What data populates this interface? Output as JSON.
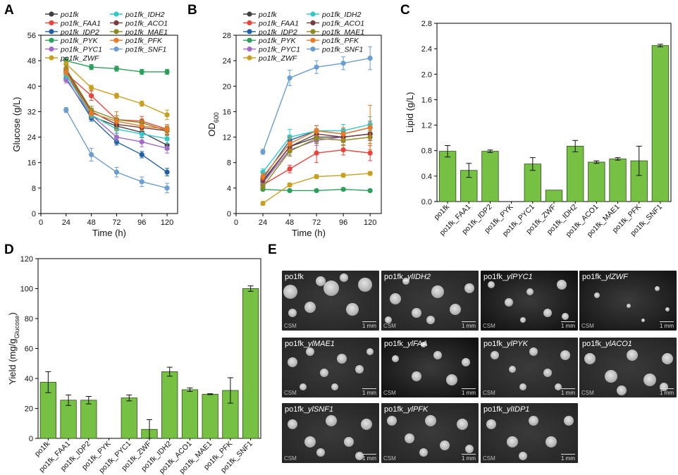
{
  "panels": {
    "A": "A",
    "B": "B",
    "C": "C",
    "D": "D",
    "E": "E"
  },
  "chart_data": [
    {
      "type": "line",
      "panel": "A",
      "xlabel": "Time (h)",
      "ylabel": "Glucose (g/L)",
      "xlim": [
        0,
        130
      ],
      "ylim": [
        0,
        56
      ],
      "xticks": [
        0,
        24,
        48,
        72,
        96,
        120
      ],
      "yticks": [
        0,
        8,
        16,
        24,
        32,
        40,
        48,
        56
      ],
      "x": [
        24,
        48,
        72,
        96,
        120
      ],
      "series": [
        {
          "name": "po1fk",
          "color": "#404040",
          "values": [
            44.5,
            30.5,
            27.5,
            25.5,
            21.5
          ],
          "err": [
            1.2,
            1.0,
            1.2,
            1.5,
            1.5
          ]
        },
        {
          "name": "po1fk_FAA1",
          "color": "#e8463c",
          "values": [
            44.0,
            37.0,
            29.5,
            29.0,
            26.5
          ],
          "err": [
            1.5,
            1.5,
            1.2,
            1.5,
            1.5
          ]
        },
        {
          "name": "po1fk_IDP2",
          "color": "#2060a8",
          "values": [
            42.5,
            30.0,
            22.5,
            18.5,
            13.0
          ],
          "err": [
            1.0,
            1.0,
            1.0,
            1.0,
            1.2
          ]
        },
        {
          "name": "po1fk_PYK",
          "color": "#2ca05a",
          "values": [
            48.0,
            46.0,
            45.5,
            44.5,
            44.5
          ],
          "err": [
            1.0,
            0.8,
            0.8,
            0.8,
            0.8
          ]
        },
        {
          "name": "po1fk_PYC1",
          "color": "#a06cc8",
          "values": [
            42.0,
            31.0,
            24.0,
            22.5,
            20.5
          ],
          "err": [
            1.0,
            1.0,
            1.2,
            1.5,
            1.5
          ]
        },
        {
          "name": "po1fk_ZWF",
          "color": "#c8a020",
          "values": [
            47.0,
            39.5,
            37.0,
            34.5,
            31.0
          ],
          "err": [
            1.0,
            0.8,
            0.8,
            0.8,
            1.5
          ]
        },
        {
          "name": "po1fk_IDH2",
          "color": "#30c8c8",
          "values": [
            43.5,
            31.0,
            26.5,
            25.0,
            23.5
          ],
          "err": [
            1.0,
            1.0,
            1.2,
            1.2,
            1.5
          ]
        },
        {
          "name": "po1fk_ACO1",
          "color": "#7a3a3a",
          "values": [
            45.0,
            32.0,
            28.0,
            27.0,
            26.0
          ],
          "err": [
            1.0,
            1.0,
            1.2,
            1.2,
            1.2
          ]
        },
        {
          "name": "po1fk_MAE1",
          "color": "#8a8a20",
          "values": [
            45.5,
            32.5,
            29.5,
            28.5,
            26.0
          ],
          "err": [
            1.0,
            1.2,
            1.2,
            1.2,
            1.5
          ]
        },
        {
          "name": "po1fk_PFK",
          "color": "#e87a28",
          "values": [
            44.5,
            31.5,
            29.0,
            27.5,
            26.5
          ],
          "err": [
            1.2,
            1.2,
            3.0,
            1.5,
            1.5
          ]
        },
        {
          "name": "po1fk_SNF1",
          "color": "#6a9ed0",
          "values": [
            32.5,
            18.5,
            13.0,
            10.0,
            8.0
          ],
          "err": [
            0.8,
            2.0,
            1.5,
            1.5,
            1.5
          ]
        }
      ]
    },
    {
      "type": "line",
      "panel": "B",
      "xlabel": "Time (h)",
      "ylabel": "OD",
      "ylabel_sub": "600",
      "xlim": [
        0,
        130
      ],
      "ylim": [
        0,
        28
      ],
      "xticks": [
        0,
        24,
        48,
        72,
        96,
        120
      ],
      "yticks": [
        0,
        4,
        8,
        12,
        16,
        20,
        24,
        28
      ],
      "x": [
        24,
        48,
        72,
        96,
        120
      ],
      "series": [
        {
          "name": "po1fk",
          "color": "#404040",
          "values": [
            5.0,
            10.5,
            12.0,
            12.0,
            12.5
          ],
          "err": [
            0.5,
            0.8,
            0.8,
            0.8,
            1.0
          ]
        },
        {
          "name": "po1fk_FAA1",
          "color": "#e8463c",
          "values": [
            4.5,
            7.0,
            9.5,
            10.0,
            9.5
          ],
          "err": [
            0.5,
            0.6,
            1.5,
            0.8,
            1.2
          ]
        },
        {
          "name": "po1fk_IDP2",
          "color": "#2060a8",
          "values": [
            5.5,
            11.5,
            13.0,
            12.5,
            13.5
          ],
          "err": [
            0.5,
            0.8,
            0.8,
            0.8,
            1.0
          ]
        },
        {
          "name": "po1fk_PYK",
          "color": "#2ca05a",
          "values": [
            3.8,
            3.6,
            3.6,
            3.8,
            3.6
          ],
          "err": [
            0.2,
            0.2,
            0.2,
            0.2,
            0.2
          ]
        },
        {
          "name": "po1fk_PYC1",
          "color": "#a06cc8",
          "values": [
            4.8,
            10.0,
            11.5,
            12.0,
            12.5
          ],
          "err": [
            0.5,
            0.8,
            0.8,
            0.8,
            1.0
          ]
        },
        {
          "name": "po1fk_ZWF",
          "color": "#c8a020",
          "values": [
            1.6,
            4.5,
            5.8,
            6.0,
            6.3
          ],
          "err": [
            0.3,
            0.3,
            0.3,
            0.3,
            0.3
          ]
        },
        {
          "name": "po1fk_IDH2",
          "color": "#30c8c8",
          "values": [
            6.5,
            12.0,
            13.0,
            13.0,
            14.0
          ],
          "err": [
            0.5,
            1.2,
            0.8,
            1.0,
            1.2
          ]
        },
        {
          "name": "po1fk_ACO1",
          "color": "#7a3a3a",
          "values": [
            5.2,
            10.5,
            12.5,
            12.0,
            12.5
          ],
          "err": [
            0.5,
            0.8,
            0.8,
            0.8,
            1.0
          ]
        },
        {
          "name": "po1fk_MAE1",
          "color": "#8a8a20",
          "values": [
            4.2,
            9.8,
            11.8,
            11.5,
            12.0
          ],
          "err": [
            0.5,
            0.8,
            0.8,
            0.8,
            1.0
          ]
        },
        {
          "name": "po1fk_PFK",
          "color": "#e87a28",
          "values": [
            5.8,
            11.0,
            13.0,
            12.5,
            13.5
          ],
          "err": [
            0.5,
            1.0,
            0.8,
            1.0,
            3.5
          ]
        },
        {
          "name": "po1fk_SNF1",
          "color": "#6a9ed0",
          "values": [
            9.7,
            21.3,
            23.0,
            23.6,
            24.4
          ],
          "err": [
            0.4,
            1.2,
            1.0,
            1.0,
            1.8
          ]
        }
      ]
    },
    {
      "type": "bar",
      "panel": "C",
      "color": "#76c043",
      "ylabel": "Lipid (g/L)",
      "ylim": [
        0,
        2.8
      ],
      "yticks": [
        0.0,
        0.4,
        0.8,
        1.2,
        1.6,
        2.0,
        2.4,
        2.8
      ],
      "categories": [
        "po1fk",
        "po1fk_FAA1",
        "po1fk_IDP2",
        "po1fk_PYK",
        "po1fk_PYC1",
        "po1fk_ZWF",
        "po1fk_IDH2",
        "po1fk_ACO1",
        "po1fk_MAE1",
        "po1fk_PFK",
        "po1fk_SNF1"
      ],
      "values": [
        0.79,
        0.49,
        0.79,
        0,
        0.59,
        0.18,
        0.87,
        0.62,
        0.67,
        0.64,
        2.45
      ],
      "err": [
        0.09,
        0.11,
        0.02,
        0,
        0.1,
        0,
        0.09,
        0.02,
        0.02,
        0.23,
        0.02
      ]
    },
    {
      "type": "bar",
      "panel": "D",
      "color": "#76c043",
      "ylabel": "Yield (mg/g",
      "ylabel_sub": "Glucose",
      "ylabel_end": ")",
      "ylim": [
        0,
        120
      ],
      "yticks": [
        0,
        20,
        40,
        60,
        80,
        100,
        120
      ],
      "categories": [
        "po1fk",
        "po1fk_FAA1",
        "po1fk_IDP2",
        "po1fk_PYK",
        "po1fk_PYC1",
        "po1fk_ZWF",
        "po1fk_IDH2",
        "po1fk_ACO1",
        "po1fk_MAE1",
        "po1fk_PFK",
        "po1fk_SNF1"
      ],
      "values": [
        37.5,
        25.5,
        25.5,
        0,
        27,
        6,
        44.5,
        32.5,
        29.5,
        32,
        100
      ],
      "err": [
        7,
        3.5,
        2.5,
        0,
        2,
        6.5,
        3,
        1.2,
        0.3,
        8.5,
        1.8
      ]
    }
  ],
  "micrographs": [
    {
      "prefix": "po1fk",
      "suffix": "",
      "csm": "CSM",
      "scale": "1 mm"
    },
    {
      "prefix": "po1fk_",
      "suffix": "ylIDH2",
      "csm": "CSM",
      "scale": "1 mm"
    },
    {
      "prefix": "po1fk_",
      "suffix": "ylPYC1",
      "csm": "CSM",
      "scale": "1 mm"
    },
    {
      "prefix": "po1fk_",
      "suffix": "ylZWF",
      "csm": "CSM",
      "scale": "1 mm"
    },
    {
      "prefix": "po1fk_",
      "suffix": "ylMAE1",
      "csm": "CSM",
      "scale": "1 mm"
    },
    {
      "prefix": "po1fk_",
      "suffix": "ylFAA",
      "csm": "CSM",
      "scale": "1 mm"
    },
    {
      "prefix": "po1fk_",
      "suffix": "ylPYK",
      "csm": "CSM",
      "scale": "1 mm"
    },
    {
      "prefix": "po1fk_",
      "suffix": "ylACO1",
      "csm": "CSM",
      "scale": "1 mm"
    },
    {
      "prefix": "po1fk_",
      "suffix": "ylSNF1",
      "csm": "CSM",
      "scale": "1 mm"
    },
    {
      "prefix": "po1fk_",
      "suffix": "ylPFK",
      "csm": "CSM",
      "scale": "1 mm"
    },
    {
      "prefix": "po1fk_",
      "suffix": "ylIDP1",
      "csm": "CSM",
      "scale": "1 mm"
    }
  ]
}
